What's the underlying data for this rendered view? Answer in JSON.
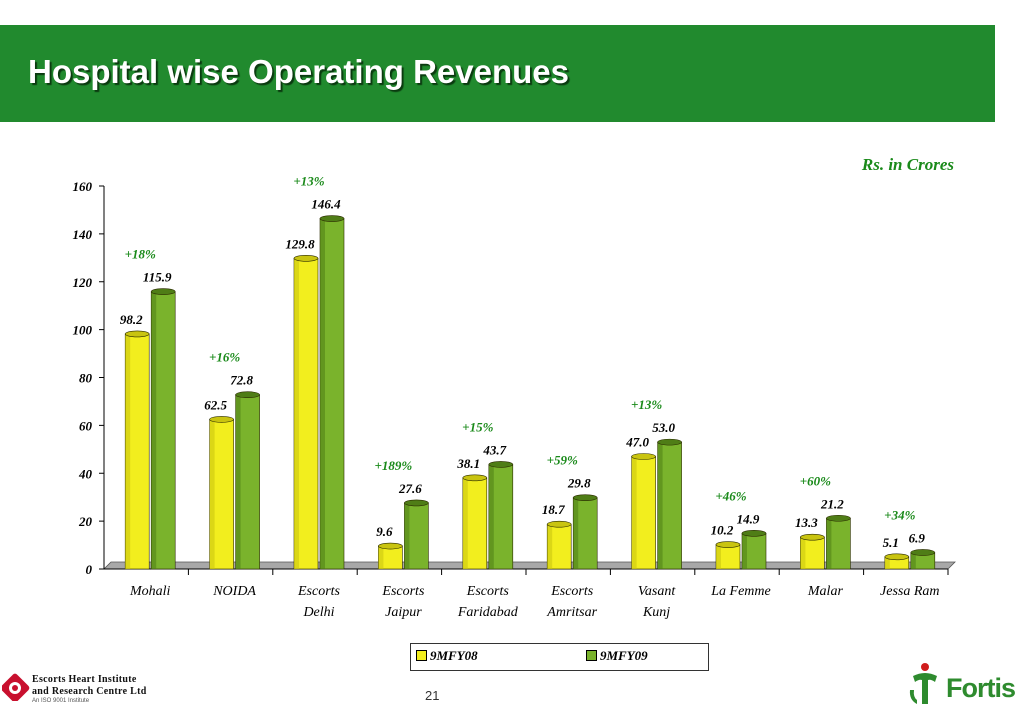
{
  "title": "Hospital wise Operating Revenues",
  "units_note": "Rs. in Crores",
  "page_number": "21",
  "left_logo": {
    "line1": "Escorts Heart Institute",
    "line2": "and Research Centre Ltd",
    "line3": "An ISO 9001 Institute"
  },
  "right_logo": {
    "text": "Fortis"
  },
  "colors": {
    "title_bar": "#218a2e",
    "series_1": "#f2ee1e",
    "series_2": "#7ab32c",
    "growth_label": "#1a8a1a"
  },
  "chart_data": {
    "type": "bar",
    "categories": [
      [
        "Mohali"
      ],
      [
        "NOIDA"
      ],
      [
        "Escorts",
        "Delhi"
      ],
      [
        "Escorts",
        "Jaipur"
      ],
      [
        "Escorts",
        "Faridabad"
      ],
      [
        "Escorts",
        "Amritsar"
      ],
      [
        "Vasant",
        "Kunj"
      ],
      [
        "La Femme"
      ],
      [
        "Malar"
      ],
      [
        "Jessa Ram"
      ]
    ],
    "series": [
      {
        "name": "9MFY08",
        "values": [
          98.2,
          62.5,
          129.8,
          9.6,
          38.1,
          18.7,
          47.0,
          10.2,
          13.3,
          5.1
        ],
        "labels": [
          "98.2",
          "62.5",
          "129.8",
          "9.6",
          "38.1",
          "18.7",
          "47.0",
          "10.2",
          "13.3",
          "5.1"
        ]
      },
      {
        "name": "9MFY09",
        "values": [
          115.9,
          72.8,
          146.4,
          27.6,
          43.7,
          29.8,
          53.0,
          14.9,
          21.2,
          6.9
        ],
        "labels": [
          "115.9",
          "72.8",
          "146.4",
          "27.6",
          "43.7",
          "29.8",
          "53.0",
          "14.9",
          "21.2",
          "6.9"
        ]
      }
    ],
    "growth": [
      "+18%",
      "+16%",
      "+13%",
      "+189%",
      "+15%",
      "+59%",
      "+13%",
      "+46%",
      "+60%",
      "+34%"
    ],
    "ylim": [
      0,
      160
    ],
    "yticks": [
      "0",
      "20",
      "40",
      "60",
      "80",
      "100",
      "120",
      "140",
      "160"
    ],
    "legend_position": "bottom",
    "grid": false
  }
}
